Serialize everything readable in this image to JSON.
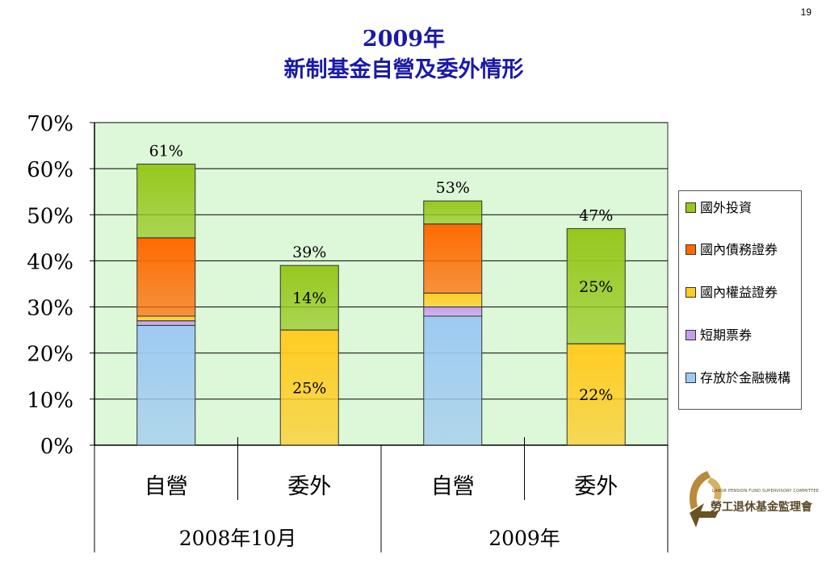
{
  "page_number": "19",
  "title_line1": "2009年",
  "title_line2": "新制基金自營及委外情形",
  "chart_data": {
    "type": "bar",
    "stacked": true,
    "categories": [
      "自營",
      "委外",
      "自營",
      "委外"
    ],
    "groups": [
      {
        "label": "2008年10月",
        "categories": [
          0,
          1
        ]
      },
      {
        "label": "2009年",
        "categories": [
          2,
          3
        ]
      }
    ],
    "series": [
      {
        "name": "存放於金融機構",
        "color": "#9ecaf2",
        "values": [
          26,
          0,
          28,
          0
        ]
      },
      {
        "name": "短期票券",
        "color": "#c79cf0",
        "values": [
          1,
          0,
          2,
          0
        ]
      },
      {
        "name": "國內權益證券",
        "color": "#ffcc22",
        "values": [
          1,
          25,
          3,
          22
        ]
      },
      {
        "name": "國內債務證券",
        "color": "#ff6a00",
        "values": [
          17,
          0,
          15,
          0
        ]
      },
      {
        "name": "國外投資",
        "color": "#96c81e",
        "values": [
          16,
          14,
          5,
          25
        ]
      }
    ],
    "totals": [
      61,
      39,
      53,
      47
    ],
    "total_labels": [
      "61%",
      "39%",
      "53%",
      "47%"
    ],
    "segment_labels": [
      {
        "category": 1,
        "series": 4,
        "text": "14%"
      },
      {
        "category": 1,
        "series": 2,
        "text": "25%"
      },
      {
        "category": 3,
        "series": 4,
        "text": "25%"
      },
      {
        "category": 3,
        "series": 2,
        "text": "22%"
      }
    ],
    "ylim": [
      0,
      70
    ],
    "yticks": [
      "0%",
      "10%",
      "20%",
      "30%",
      "40%",
      "50%",
      "60%",
      "70%"
    ],
    "grid": true,
    "legend_position": "right",
    "plot_background": "#ddf8d8"
  },
  "legend": {
    "items": [
      "國外投資",
      "國內債務證券",
      "國內權益證券",
      "短期票券",
      "存放於金融機構"
    ],
    "colors": [
      "#96c81e",
      "#ff6a00",
      "#ffcc22",
      "#c79cf0",
      "#9ecaf2"
    ]
  },
  "logo": {
    "name": "勞工退休基金監理會",
    "subtitle": "LABOR PENSION FUND SUPERVISORY COMMITTEE"
  }
}
